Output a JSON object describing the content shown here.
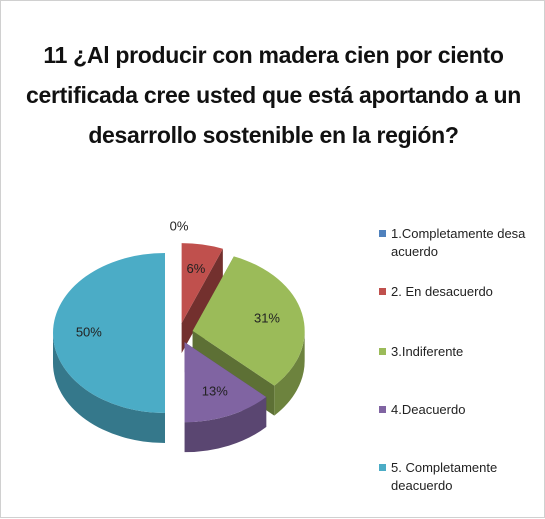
{
  "chart_data": {
    "type": "pie3d",
    "title": "11 ¿Al producir con madera cien por ciento certificada cree usted que está aportando a un desarrollo sostenible en la región?",
    "categories": [
      "1.Completamente desa acuerdo",
      "2. En desacuerdo",
      "3.Indiferente",
      "4.Deacuerdo",
      "5. Completamente deacuerdo"
    ],
    "values": [
      0,
      6,
      31,
      13,
      50
    ],
    "value_labels": [
      "0%",
      "6%",
      "31%",
      "13%",
      "50%"
    ],
    "colors": [
      "#4f81bd",
      "#c0504d",
      "#9bbb59",
      "#8064a2",
      "#4bacc6"
    ],
    "legend": "right"
  }
}
